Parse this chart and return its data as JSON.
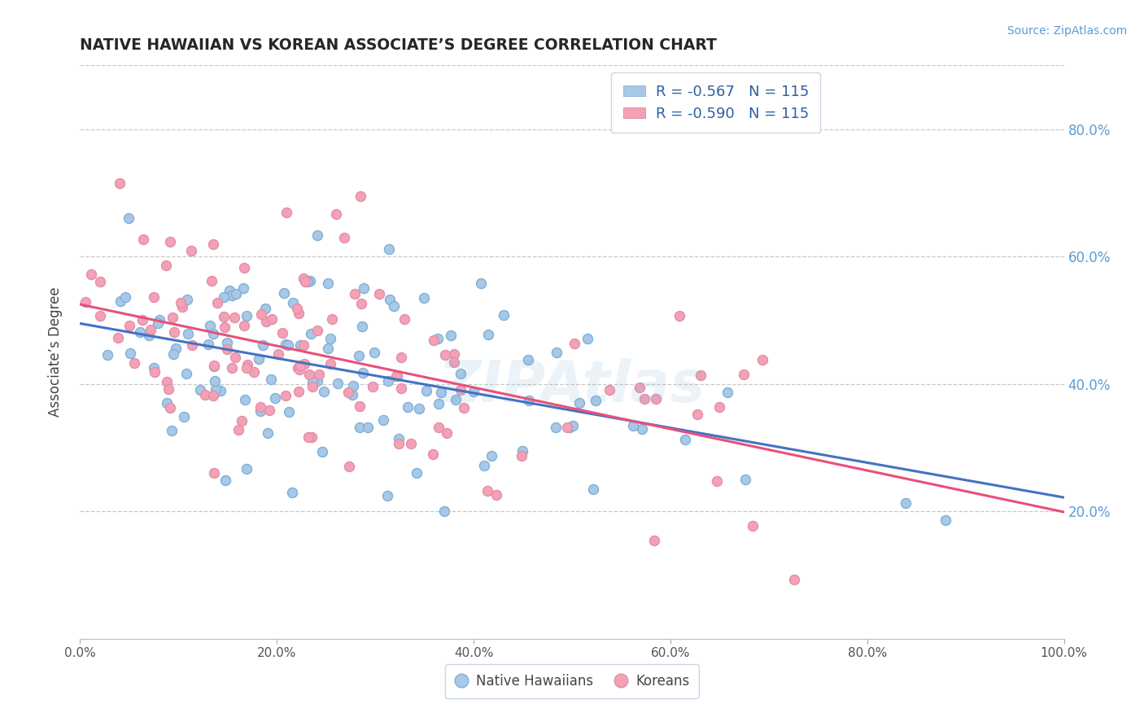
{
  "title": "NATIVE HAWAIIAN VS KOREAN ASSOCIATE’S DEGREE CORRELATION CHART",
  "source": "Source: ZipAtlas.com",
  "ylabel": "Associate’s Degree",
  "legend_label1": "Native Hawaiians",
  "legend_label2": "Koreans",
  "r1": "-0.567",
  "r2": "-0.590",
  "n1": "115",
  "n2": "115",
  "blue_color": "#A8C8E8",
  "pink_color": "#F4A0B5",
  "blue_line_color": "#4472C4",
  "pink_line_color": "#E8507A",
  "right_axis_color": "#5B9BD5",
  "title_color": "#262626",
  "watermark": "ZIPAtlas",
  "watermark_color": "#7EB3D8",
  "x_tick_labels": [
    "0.0%",
    "20.0%",
    "40.0%",
    "60.0%",
    "80.0%",
    "100.0%"
  ],
  "y_right_labels": [
    "20.0%",
    "40.0%",
    "60.0%",
    "80.0%"
  ],
  "ylim": [
    0.0,
    0.9
  ],
  "xlim": [
    0.0,
    1.0
  ],
  "grid_color": "#C8C8C8",
  "legend_text_color": "#2E5FA3",
  "bottom_legend_text_color": "#444444"
}
